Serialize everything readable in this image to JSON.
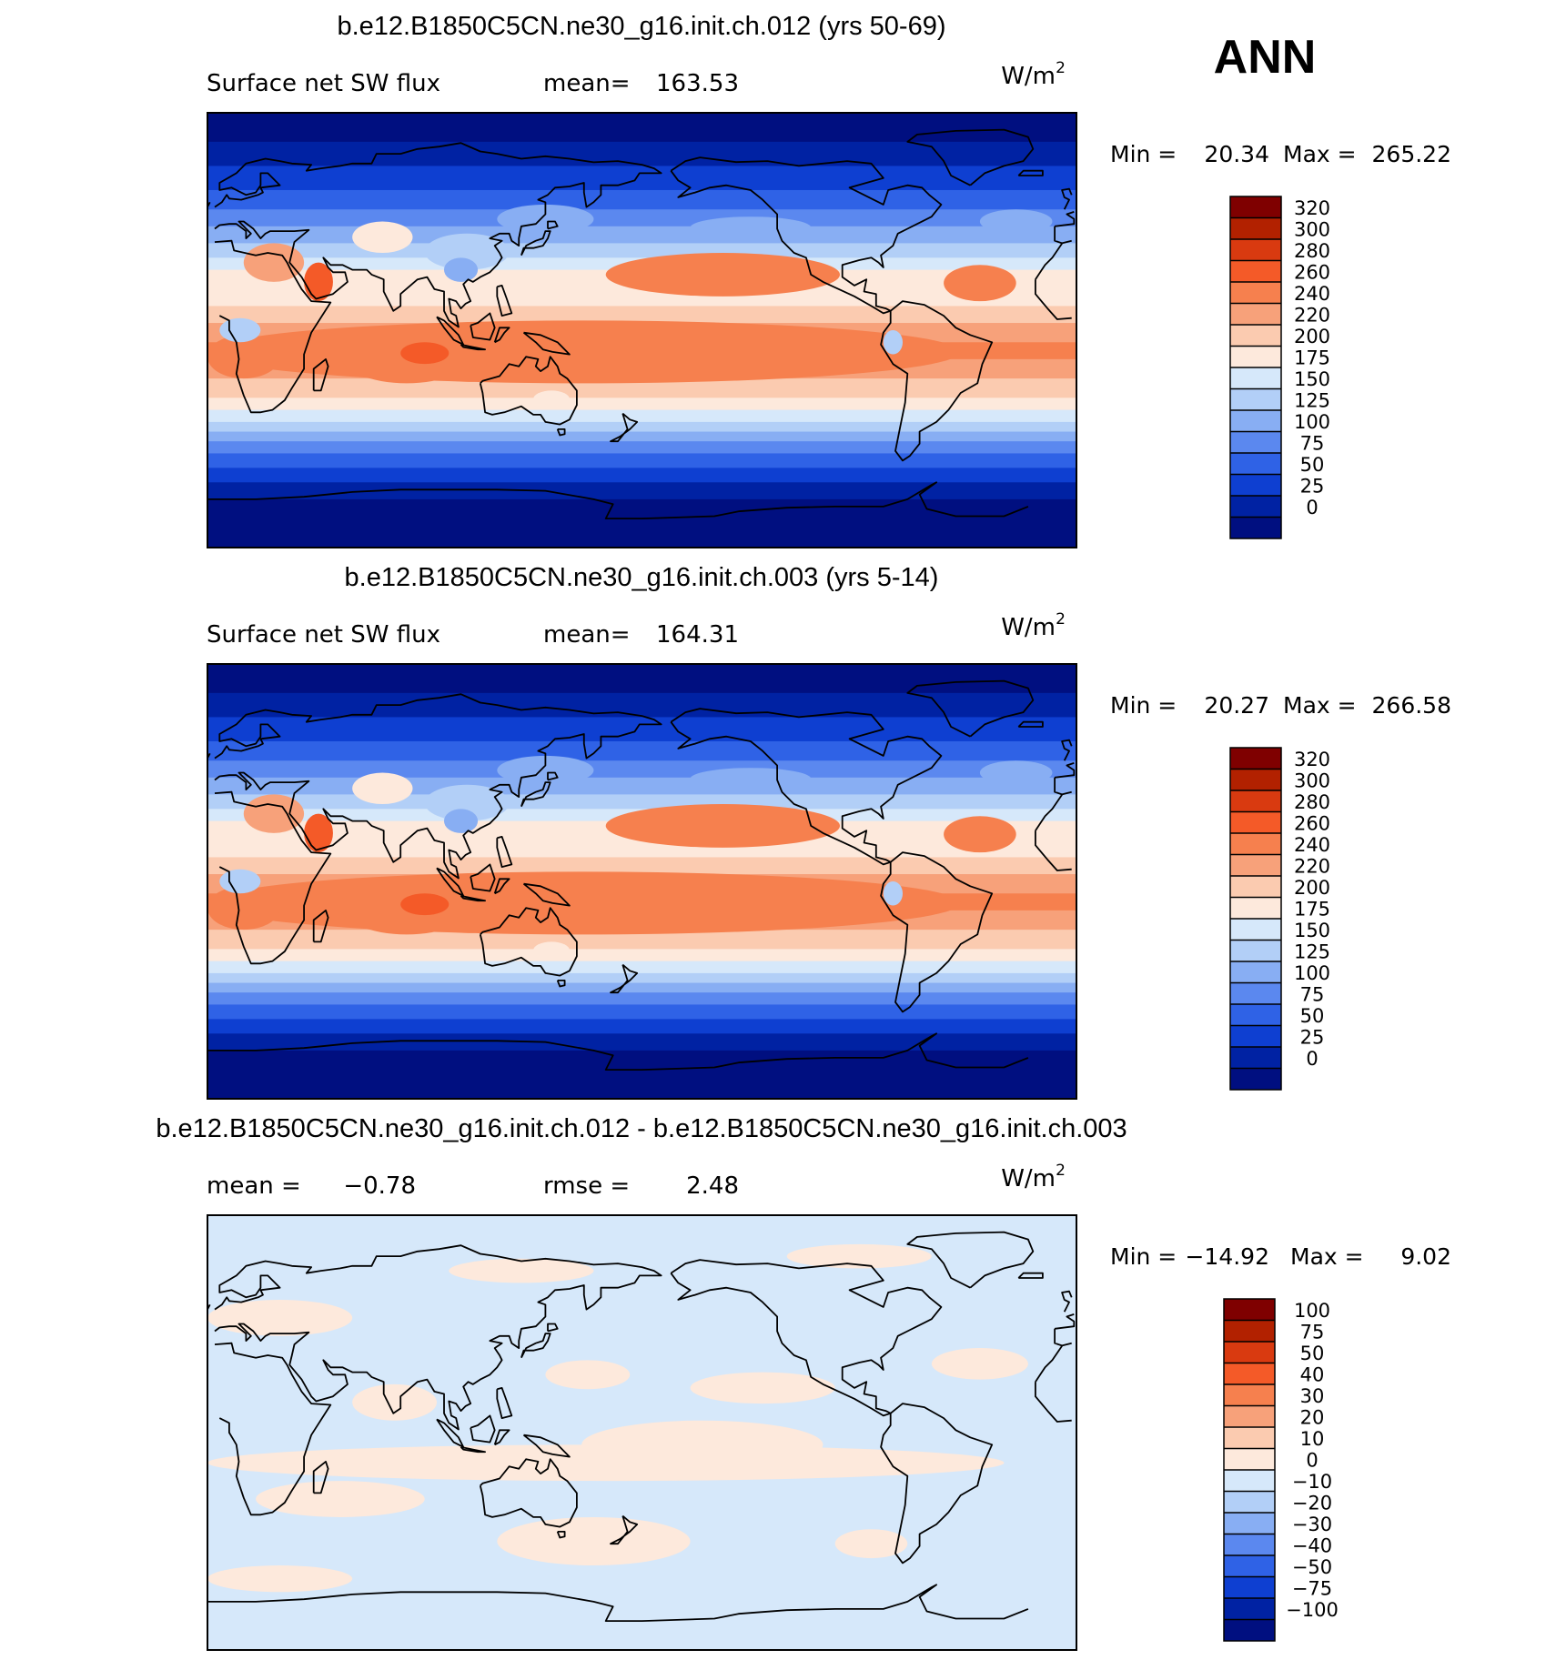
{
  "figure": {
    "season": "ANN",
    "units_base": "W/m",
    "units_exp": "2"
  },
  "chart_data": [
    {
      "type": "heatmap",
      "title": "b.e12.B1850C5CN.ne30_g16.init.ch.012 (yrs 50-69)",
      "left_label": "Surface net SW flux",
      "stat_label": "mean=",
      "stat_value": "163.53",
      "min_label": "Min =",
      "min_value": "20.34",
      "max_label": "Max =",
      "max_value": "265.22",
      "colorbar_labels": [
        "320",
        "300",
        "280",
        "260",
        "240",
        "220",
        "200",
        "175",
        "150",
        "125",
        "100",
        "75",
        "50",
        "25",
        "0"
      ],
      "colorbar_colors": [
        "#7f0000",
        "#b22100",
        "#d93a10",
        "#f45a28",
        "#f6804e",
        "#f7a17a",
        "#fbcbb0",
        "#fde9dc",
        "#d6e8fa",
        "#b2cff7",
        "#88aef3",
        "#5b88ef",
        "#2f62e6",
        "#0e3fd1",
        "#0022a3",
        "#000f80"
      ]
    },
    {
      "type": "heatmap",
      "title": "b.e12.B1850C5CN.ne30_g16.init.ch.003 (yrs 5-14)",
      "left_label": "Surface net SW flux",
      "stat_label": "mean=",
      "stat_value": "164.31",
      "min_label": "Min =",
      "min_value": "20.27",
      "max_label": "Max =",
      "max_value": "266.58",
      "colorbar_labels": [
        "320",
        "300",
        "280",
        "260",
        "240",
        "220",
        "200",
        "175",
        "150",
        "125",
        "100",
        "75",
        "50",
        "25",
        "0"
      ],
      "colorbar_colors": [
        "#7f0000",
        "#b22100",
        "#d93a10",
        "#f45a28",
        "#f6804e",
        "#f7a17a",
        "#fbcbb0",
        "#fde9dc",
        "#d6e8fa",
        "#b2cff7",
        "#88aef3",
        "#5b88ef",
        "#2f62e6",
        "#0e3fd1",
        "#0022a3",
        "#000f80"
      ]
    },
    {
      "type": "heatmap",
      "title": "b.e12.B1850C5CN.ne30_g16.init.ch.012 - b.e12.B1850C5CN.ne30_g16.init.ch.003",
      "left_label": "mean =",
      "left_value": "−0.78",
      "stat_label": "rmse =",
      "stat_value": "2.48",
      "min_label": "Min =",
      "min_value": "−14.92",
      "max_label": "Max =",
      "max_value": "9.02",
      "colorbar_labels": [
        "100",
        "75",
        "50",
        "40",
        "30",
        "20",
        "10",
        "0",
        "−10",
        "−20",
        "−30",
        "−40",
        "−50",
        "−75",
        "−100"
      ],
      "colorbar_colors": [
        "#7f0000",
        "#b22100",
        "#d93a10",
        "#f45a28",
        "#f6804e",
        "#f7a17a",
        "#fbcbb0",
        "#fde9dc",
        "#d6e8fa",
        "#b2cff7",
        "#88aef3",
        "#5b88ef",
        "#2f62e6",
        "#0e3fd1",
        "#0022a3",
        "#000f80"
      ]
    }
  ]
}
